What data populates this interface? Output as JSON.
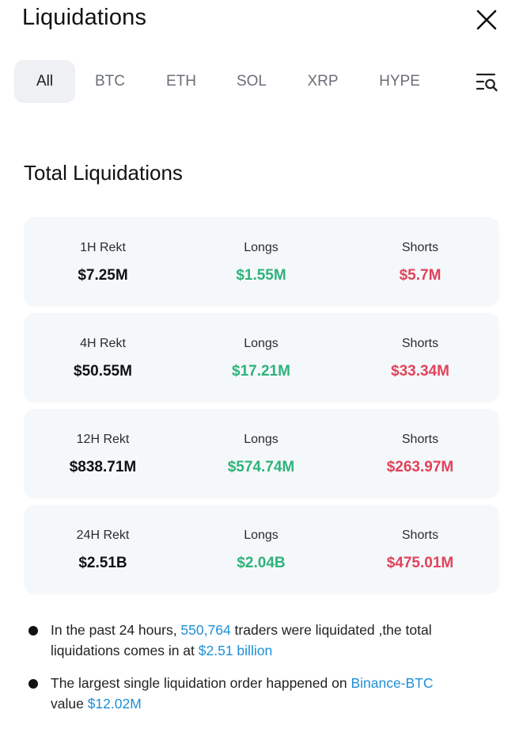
{
  "header": {
    "title": "Liquidations"
  },
  "tabs": [
    {
      "label": "All",
      "active": true
    },
    {
      "label": "BTC",
      "active": false
    },
    {
      "label": "ETH",
      "active": false
    },
    {
      "label": "SOL",
      "active": false
    },
    {
      "label": "XRP",
      "active": false
    },
    {
      "label": "HYPE",
      "active": false
    }
  ],
  "icons": {
    "close": "close-icon",
    "filter": "list-search-icon"
  },
  "section_title": "Total Liquidations",
  "cards": [
    {
      "rekt_label": "1H Rekt",
      "rekt_value": "$7.25M",
      "longs_label": "Longs",
      "longs_value": "$1.55M",
      "shorts_label": "Shorts",
      "shorts_value": "$5.7M"
    },
    {
      "rekt_label": "4H Rekt",
      "rekt_value": "$50.55M",
      "longs_label": "Longs",
      "longs_value": "$17.21M",
      "shorts_label": "Shorts",
      "shorts_value": "$33.34M"
    },
    {
      "rekt_label": "12H Rekt",
      "rekt_value": "$838.71M",
      "longs_label": "Longs",
      "longs_value": "$574.74M",
      "shorts_label": "Shorts",
      "shorts_value": "$263.97M"
    },
    {
      "rekt_label": "24H Rekt",
      "rekt_value": "$2.51B",
      "longs_label": "Longs",
      "longs_value": "$2.04B",
      "shorts_label": "Shorts",
      "shorts_value": "$475.01M"
    }
  ],
  "notes": {
    "n1_pre": "In the past 24 hours, ",
    "n1_traders": "550,764",
    "n1_mid": " traders were liquidated ,the total liquidations comes in at ",
    "n1_total": "$2.51 billion",
    "n2_pre": "The largest single liquidation order happened on ",
    "n2_exchange": "Binance-BTC",
    "n2_mid": " value ",
    "n2_value": "$12.02M"
  },
  "colors": {
    "long": "#2fb37a",
    "short": "#e2425a",
    "link": "#1e8fd6",
    "active_tab_bg": "#eef0f3",
    "card_bg": "#f5f8fb"
  }
}
